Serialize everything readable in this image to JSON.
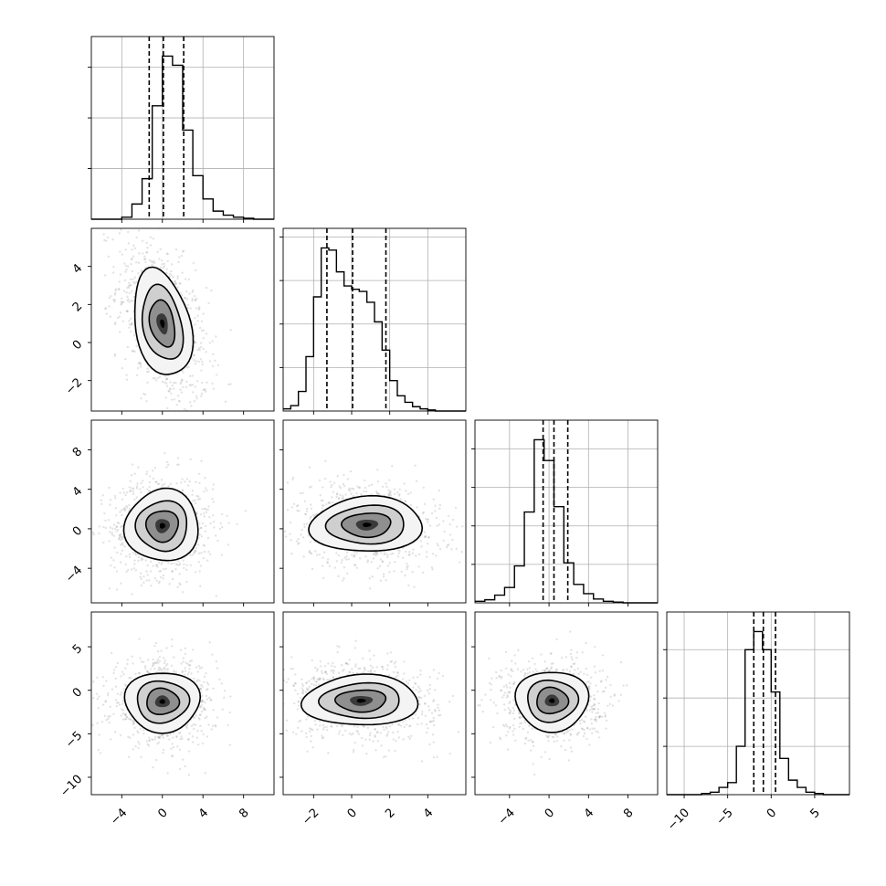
{
  "chart_data": {
    "type": "corner",
    "n_params": 4,
    "quantiles": [
      0.16,
      0.5,
      0.84
    ],
    "grid": true,
    "params": [
      {
        "range": [
          -7,
          11
        ],
        "ticks": [
          -4,
          0,
          4,
          8
        ],
        "tick_labels": [
          "−4",
          "0",
          "4",
          "8"
        ]
      },
      {
        "range": [
          -3.6,
          6
        ],
        "ticks": [
          -2,
          0,
          2,
          4
        ],
        "tick_labels": [
          "−2",
          "0",
          "2",
          "4"
        ]
      },
      {
        "range": [
          -7.5,
          11
        ],
        "ticks": [
          -4,
          0,
          4,
          8
        ],
        "tick_labels": [
          "−4",
          "0",
          "4",
          "8"
        ]
      },
      {
        "range": [
          -12,
          9
        ],
        "ticks": [
          -10,
          -5,
          0,
          5
        ],
        "tick_labels": [
          "−10",
          "−5",
          "0",
          "5"
        ]
      }
    ],
    "marginals": [
      {
        "param": 0,
        "bin_edges": [
          -7,
          -6,
          -5,
          -4,
          -3,
          -2,
          -1,
          0,
          1,
          2,
          3,
          4,
          5,
          6,
          7,
          8,
          9,
          10,
          11
        ],
        "counts": [
          0,
          0,
          0,
          2,
          15,
          40,
          112,
          161,
          152,
          88,
          43,
          20,
          8,
          4,
          2,
          1,
          0,
          0
        ],
        "quantile_values": [
          -1.3,
          0.1,
          2.1
        ]
      },
      {
        "param": 1,
        "bin_edges": [
          -3.6,
          -3.2,
          -2.8,
          -2.4,
          -2.0,
          -1.6,
          -1.2,
          -0.8,
          -0.4,
          0.0,
          0.4,
          0.8,
          1.2,
          1.6,
          2.0,
          2.4,
          2.8,
          3.2,
          3.6,
          4.0,
          4.4,
          4.8,
          5.2,
          5.6,
          6.0
        ],
        "counts": [
          2,
          5,
          18,
          50,
          105,
          150,
          148,
          128,
          115,
          112,
          110,
          100,
          82,
          56,
          28,
          14,
          8,
          4,
          2,
          1,
          0,
          0,
          0,
          0
        ],
        "quantile_values": [
          -1.3,
          0.05,
          1.8
        ]
      },
      {
        "param": 2,
        "bin_edges": [
          -7.5,
          -6.5,
          -5.5,
          -4.5,
          -3.5,
          -2.5,
          -1.5,
          -0.5,
          0.5,
          1.5,
          2.5,
          3.5,
          4.5,
          5.5,
          6.5,
          7.5,
          8.5,
          9.5,
          10.5,
          11.0
        ],
        "counts": [
          2,
          4,
          10,
          20,
          48,
          118,
          212,
          185,
          125,
          52,
          24,
          12,
          5,
          2,
          1,
          0,
          0,
          0,
          0
        ],
        "quantile_values": [
          -0.6,
          0.5,
          1.9
        ]
      },
      {
        "param": 3,
        "bin_edges": [
          -12,
          -11,
          -10,
          -9,
          -8,
          -7,
          -6,
          -5,
          -4,
          -3,
          -2,
          -1,
          0,
          1,
          2,
          3,
          4,
          5,
          6,
          7,
          8,
          9
        ],
        "counts": [
          0,
          0,
          0,
          0,
          1,
          2,
          6,
          10,
          40,
          120,
          135,
          120,
          85,
          30,
          12,
          6,
          2,
          1,
          0,
          0,
          0
        ],
        "quantile_values": [
          -2.0,
          -0.9,
          0.5
        ]
      }
    ],
    "joints": [
      {
        "x_param": 0,
        "y_param": 1,
        "mode": [
          0.0,
          1.0
        ]
      },
      {
        "x_param": 0,
        "y_param": 2,
        "mode": [
          0.0,
          0.3
        ]
      },
      {
        "x_param": 1,
        "y_param": 2,
        "mode": [
          0.8,
          0.4
        ]
      },
      {
        "x_param": 0,
        "y_param": 3,
        "mode": [
          0.0,
          -1.3
        ]
      },
      {
        "x_param": 1,
        "y_param": 3,
        "mode": [
          0.5,
          -1.2
        ]
      },
      {
        "x_param": 2,
        "y_param": 3,
        "mode": [
          0.3,
          -1.2
        ]
      }
    ]
  }
}
